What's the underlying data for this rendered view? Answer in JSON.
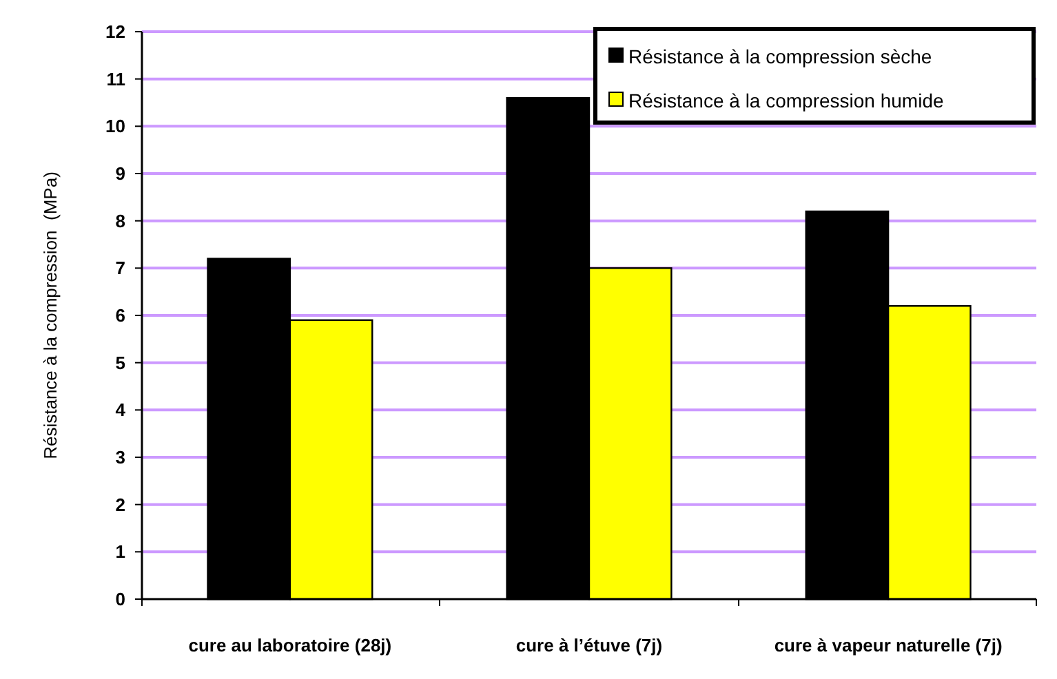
{
  "chart_data": {
    "type": "bar",
    "ylabel": "Résistance à la compression  (MPa)",
    "categories": [
      "cure au laboratoire (28j)",
      "cure à l’étuve (7j)",
      "cure à vapeur naturelle (7j)"
    ],
    "series": [
      {
        "name": "Résistance à la compression sèche",
        "color": "#000000",
        "values": [
          7.2,
          10.6,
          8.2
        ]
      },
      {
        "name": "Résistance à la compression humide",
        "color": "#ffff00",
        "values": [
          5.9,
          7.0,
          6.2
        ]
      }
    ],
    "ylim": [
      0,
      12
    ],
    "yticks": [
      0,
      1,
      2,
      3,
      4,
      5,
      6,
      7,
      8,
      9,
      10,
      11,
      12
    ],
    "grid": true,
    "legend": "top right"
  }
}
